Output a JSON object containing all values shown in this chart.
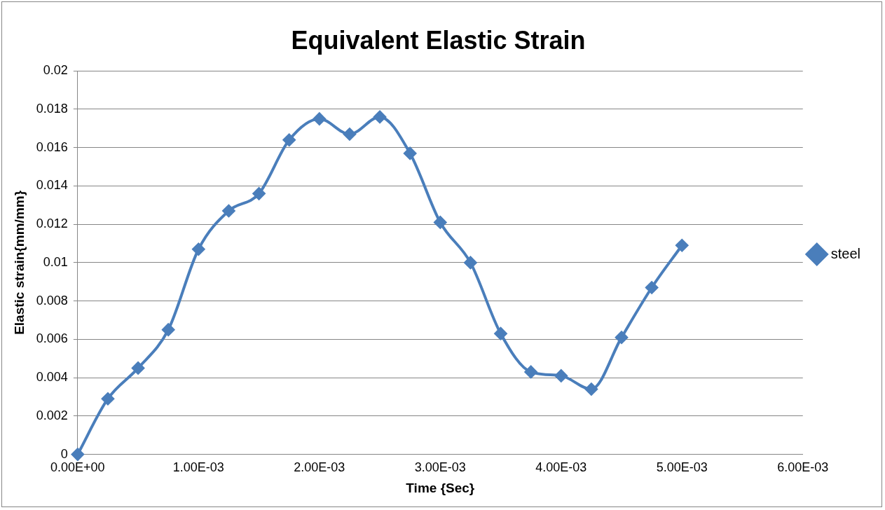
{
  "chart_data": {
    "type": "line",
    "title": "Equivalent Elastic Strain",
    "xlabel": "Time {Sec}",
    "ylabel": "Elastic strain{mm/mm}",
    "x": [
      0,
      0.00025,
      0.0005,
      0.00075,
      0.001,
      0.00125,
      0.0015,
      0.00175,
      0.002,
      0.00225,
      0.0025,
      0.00275,
      0.003,
      0.00325,
      0.0035,
      0.00375,
      0.004,
      0.00425,
      0.0045,
      0.00475,
      0.005
    ],
    "series": [
      {
        "name": "steel",
        "color": "#4a7ebb",
        "values": [
          0,
          0.0029,
          0.0045,
          0.0065,
          0.0107,
          0.0127,
          0.0136,
          0.0164,
          0.0175,
          0.0167,
          0.0176,
          0.0157,
          0.0121,
          0.01,
          0.0063,
          0.0043,
          0.0041,
          0.0034,
          0.0061,
          0.0087,
          0.0109
        ]
      }
    ],
    "xlim": [
      0,
      0.006
    ],
    "xticks": [
      {
        "value": 0,
        "label": "0.00E+00"
      },
      {
        "value": 0.001,
        "label": "1.00E-03"
      },
      {
        "value": 0.002,
        "label": "2.00E-03"
      },
      {
        "value": 0.003,
        "label": "3.00E-03"
      },
      {
        "value": 0.004,
        "label": "4.00E-03"
      },
      {
        "value": 0.005,
        "label": "5.00E-03"
      },
      {
        "value": 0.006,
        "label": "6.00E-03"
      }
    ],
    "ylim": [
      0,
      0.02
    ],
    "yticks": [
      0,
      0.002,
      0.004,
      0.006,
      0.008,
      0.01,
      0.012,
      0.014,
      0.016,
      0.018,
      0.02
    ],
    "grid": "y",
    "legend": "right",
    "marker": "diamond",
    "line_style": "solid"
  }
}
